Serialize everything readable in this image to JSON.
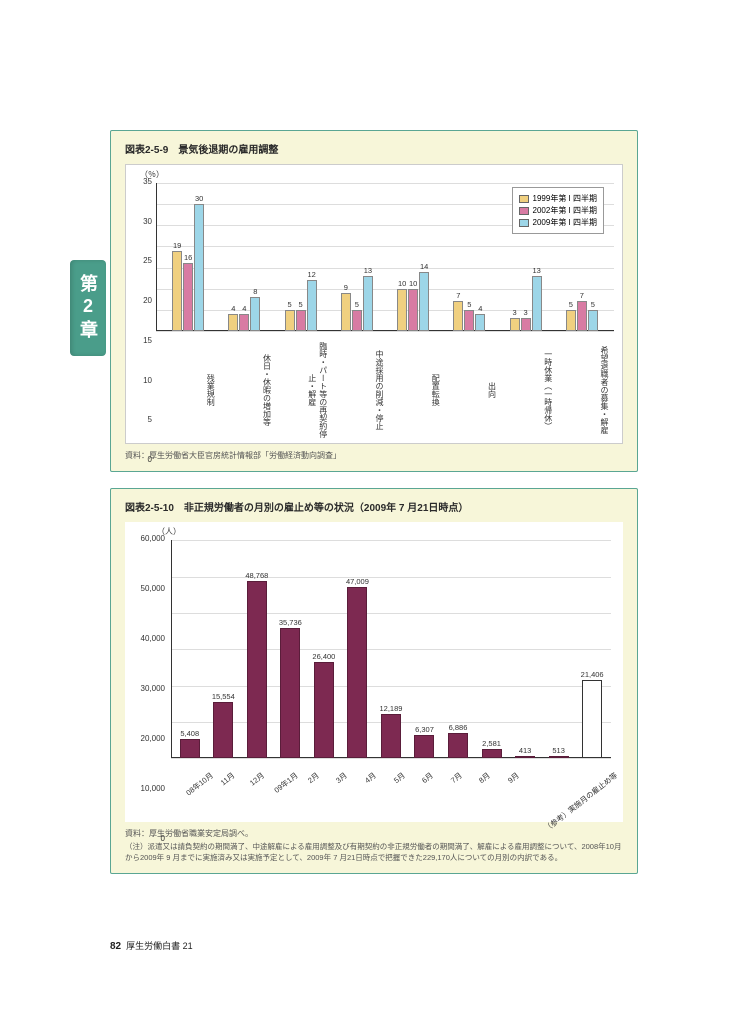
{
  "chapter_tab": "第2章",
  "page_footer": {
    "num": "82",
    "text": "厚生労働白書 21"
  },
  "chart1": {
    "type": "grouped-bar",
    "title": "図表2-5-9　景気後退期の雇用調整",
    "y_unit": "（％）",
    "ylim": [
      0,
      35
    ],
    "ytick_step": 5,
    "series": [
      {
        "label": "1999年第 I 四半期",
        "color": "#f0d080"
      },
      {
        "label": "2002年第 I 四半期",
        "color": "#d87ba3"
      },
      {
        "label": "2009年第 I 四半期",
        "color": "#9dd6e8"
      }
    ],
    "categories": [
      "残業規制",
      "休日・休暇の増加等",
      "臨時・パート等の再契約停止・解雇",
      "中途採用の削減・停止",
      "配置転換",
      "出向",
      "一時休業（一時帰休）",
      "希望退職者の募集・解雇"
    ],
    "values": [
      [
        19,
        16,
        30
      ],
      [
        4,
        4,
        8
      ],
      [
        5,
        5,
        12
      ],
      [
        9,
        5,
        13
      ],
      [
        10,
        10,
        14
      ],
      [
        7,
        5,
        4
      ],
      [
        3,
        3,
        13
      ],
      [
        5,
        7,
        5
      ]
    ],
    "source": "資料：厚生労働省大臣官房統計情報部「労働経済動向調査」",
    "background_color": "#ffffff",
    "grid_color": "#dddddd"
  },
  "chart2": {
    "type": "bar",
    "title": "図表2-5-10　非正規労働者の月別の雇止め等の状況（2009年 7 月21日時点）",
    "y_unit": "（人）",
    "ylim": [
      0,
      60000
    ],
    "ytick_step": 10000,
    "bar_color": "#7d2951",
    "ref_bar_color": "#ffffff",
    "categories": [
      "08年10月",
      "11月",
      "12月",
      "09年1月",
      "2月",
      "3月",
      "4月",
      "5月",
      "6月",
      "7月",
      "8月",
      "9月",
      "（参考）実施月の雇止め等"
    ],
    "values": [
      5408,
      15554,
      48768,
      35736,
      26400,
      47009,
      12189,
      6307,
      6886,
      2581,
      413,
      513,
      21406
    ],
    "ref_index": 12,
    "source": "資料：厚生労働省職業安定局調べ。",
    "note": "（注）派遣又は請負契約の期間満了、中途解雇による雇用調整及び有期契約の非正規労働者の期間満了、解雇による雇用調整について、2008年10月から2009年 9 月までに実施済み又は実施予定として、2009年 7 月21日時点で把握できた229,170人についての月別の内訳である。",
    "background_color": "#ffffff",
    "grid_color": "#dddddd"
  }
}
